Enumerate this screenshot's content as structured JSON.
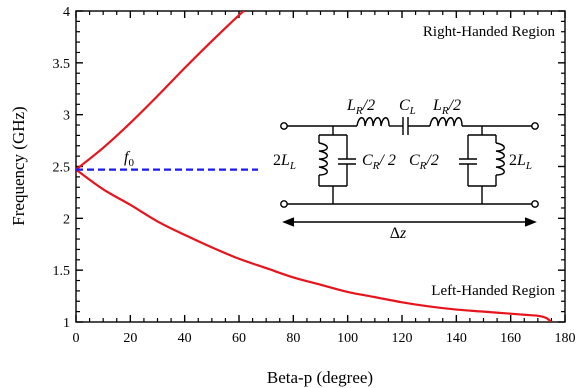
{
  "chart_data": {
    "type": "line",
    "xlabel": "Beta-p (degree)",
    "ylabel": "Frequency (GHz)",
    "xlim": [
      0,
      180
    ],
    "ylim": [
      1,
      4
    ],
    "x_ticks": [
      "0",
      "20",
      "40",
      "60",
      "80",
      "100",
      "120",
      "140",
      "160",
      "180"
    ],
    "y_ticks": [
      "1",
      "1.5",
      "2",
      "2.5",
      "3",
      "3.5",
      "4"
    ],
    "grid": false,
    "series": [
      {
        "name": "",
        "color": "#e8141c",
        "x": [
          0,
          10,
          20,
          30,
          40,
          50,
          60,
          62
        ],
        "y": [
          2.47,
          2.68,
          2.92,
          3.18,
          3.45,
          3.71,
          3.96,
          4.0
        ]
      },
      {
        "name": "",
        "color": "#e8141c",
        "x": [
          0,
          10,
          20,
          30,
          40,
          50,
          60,
          70,
          80,
          90,
          100,
          110,
          120,
          130,
          140,
          150,
          160,
          165,
          170,
          173,
          175
        ],
        "y": [
          2.47,
          2.28,
          2.13,
          1.97,
          1.84,
          1.72,
          1.61,
          1.52,
          1.43,
          1.36,
          1.29,
          1.24,
          1.19,
          1.15,
          1.12,
          1.1,
          1.08,
          1.07,
          1.06,
          1.04,
          1.0
        ]
      },
      {
        "name": "f0",
        "color": "#1a1aee",
        "style": "dashed",
        "x": [
          0,
          67
        ],
        "y": [
          2.47,
          2.47
        ]
      }
    ],
    "annotations": {
      "right_region": "Right-Handed Region",
      "left_region": "Left-Handed Region",
      "f0_main": "f",
      "f0_sub": "0"
    }
  },
  "circuit": {
    "lr_left_main": "L",
    "lr_left_sub": "R",
    "lr_left_tail": "/2",
    "cl_main": "C",
    "cl_sub": "L",
    "lr_right_main": "L",
    "lr_right_sub": "R",
    "lr_right_tail": "/2",
    "ll_left_pre": "2",
    "ll_left_main": "L",
    "ll_left_sub": "L",
    "cr_left_main": "C",
    "cr_left_sub": "R",
    "cr_left_tail": "/ 2",
    "cr_right_main": "C",
    "cr_right_sub": "R",
    "cr_right_tail": "/2",
    "ll_right_pre": "2",
    "ll_right_main": "L",
    "ll_right_sub": "L",
    "delta": "Δ",
    "delta_var": "z"
  }
}
